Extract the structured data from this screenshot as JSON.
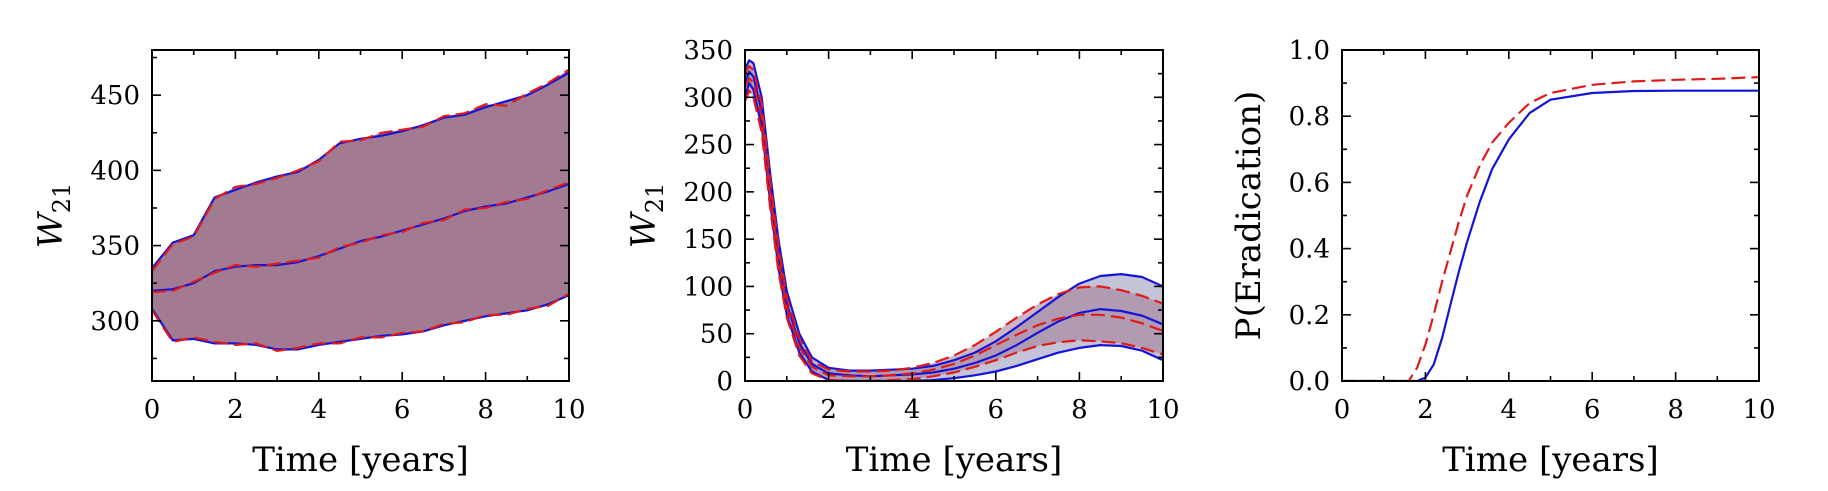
{
  "figure": {
    "colors": {
      "blue": "#1414d8",
      "red": "#e01a1a",
      "fill_purple": "#a27a91",
      "fill_lavender": "#b0b0cc"
    }
  },
  "chart_data": [
    {
      "type": "area",
      "xlabel": "Time [years]",
      "ylabel": "W",
      "ylabel_sub": "21",
      "xlim": [
        0,
        10
      ],
      "ylim": [
        260,
        480
      ],
      "xticks": [
        0,
        2,
        4,
        6,
        8,
        10
      ],
      "yticks": [
        300,
        350,
        400,
        450
      ],
      "x": [
        0,
        0.5,
        1,
        1.5,
        2,
        2.5,
        3,
        3.5,
        4,
        4.5,
        5,
        5.5,
        6,
        6.5,
        7,
        7.5,
        8,
        8.5,
        9,
        9.5,
        10
      ],
      "series": [
        {
          "style": "solid-blue",
          "band": "upper",
          "values": [
            335,
            352,
            357,
            382,
            387,
            392,
            396,
            399,
            407,
            418,
            421,
            423,
            426,
            430,
            435,
            437,
            442,
            446,
            450,
            457,
            465
          ]
        },
        {
          "style": "solid-blue",
          "band": "median",
          "values": [
            320,
            321,
            325,
            333,
            336,
            337,
            337,
            339,
            343,
            348,
            353,
            356,
            360,
            364,
            368,
            373,
            376,
            378,
            382,
            386,
            391
          ]
        },
        {
          "style": "solid-blue",
          "band": "lower",
          "values": [
            308,
            287,
            288,
            285,
            285,
            284,
            281,
            281,
            284,
            286,
            288,
            290,
            291,
            293,
            297,
            300,
            303,
            305,
            307,
            311,
            317
          ]
        },
        {
          "style": "dashed-red",
          "band": "upper",
          "values": [
            333,
            351,
            356,
            381,
            389,
            391,
            395,
            400,
            406,
            419,
            420,
            425,
            427,
            429,
            436,
            438,
            444,
            443,
            451,
            458,
            467
          ]
        },
        {
          "style": "dashed-red",
          "band": "median",
          "values": [
            319,
            320,
            326,
            332,
            337,
            336,
            338,
            340,
            342,
            349,
            352,
            357,
            359,
            365,
            367,
            374,
            375,
            379,
            381,
            387,
            392
          ]
        },
        {
          "style": "dashed-red",
          "band": "lower",
          "values": [
            307,
            286,
            289,
            286,
            284,
            285,
            280,
            282,
            285,
            285,
            289,
            289,
            292,
            293,
            298,
            299,
            304,
            304,
            308,
            310,
            318
          ]
        }
      ]
    },
    {
      "type": "area",
      "xlabel": "Time [years]",
      "ylabel": "W",
      "ylabel_sub": "21",
      "xlim": [
        0,
        10
      ],
      "ylim": [
        0,
        350
      ],
      "xticks": [
        0,
        2,
        4,
        6,
        8,
        10
      ],
      "yticks": [
        0,
        50,
        100,
        150,
        200,
        250,
        300,
        350
      ],
      "x": [
        0,
        0.1,
        0.2,
        0.4,
        0.6,
        0.8,
        1,
        1.3,
        1.6,
        2,
        2.5,
        3,
        3.5,
        4,
        4.5,
        5,
        5.5,
        6,
        6.5,
        7,
        7.5,
        8,
        8.5,
        9,
        9.5,
        10
      ],
      "series": [
        {
          "style": "solid-blue",
          "band": "upper",
          "values": [
            330,
            339,
            336,
            300,
            220,
            150,
            95,
            50,
            25,
            14,
            11,
            11,
            12,
            13,
            16,
            22,
            30,
            42,
            57,
            73,
            89,
            103,
            111,
            113,
            110,
            100
          ]
        },
        {
          "style": "solid-blue",
          "band": "median",
          "values": [
            315,
            327,
            322,
            285,
            205,
            135,
            82,
            40,
            18,
            8,
            6,
            5,
            6,
            7,
            9,
            13,
            19,
            27,
            38,
            51,
            63,
            72,
            76,
            74,
            69,
            60
          ]
        },
        {
          "style": "solid-blue",
          "band": "lower",
          "values": [
            300,
            315,
            308,
            270,
            190,
            120,
            70,
            30,
            10,
            1,
            0,
            0,
            0,
            0,
            1,
            3,
            6,
            10,
            16,
            23,
            30,
            35,
            38,
            37,
            32,
            22
          ]
        },
        {
          "style": "dashed-red",
          "band": "upper",
          "values": [
            325,
            333,
            329,
            293,
            212,
            142,
            88,
            45,
            21,
            12,
            10,
            10,
            11,
            14,
            19,
            27,
            38,
            52,
            67,
            81,
            92,
            99,
            100,
            96,
            90,
            82
          ]
        },
        {
          "style": "dashed-red",
          "band": "median",
          "values": [
            311,
            320,
            315,
            279,
            198,
            130,
            78,
            36,
            15,
            6,
            5,
            5,
            6,
            8,
            12,
            18,
            27,
            38,
            49,
            59,
            66,
            70,
            70,
            67,
            61,
            53
          ]
        },
        {
          "style": "dashed-red",
          "band": "lower",
          "values": [
            296,
            307,
            300,
            263,
            184,
            116,
            67,
            27,
            8,
            1,
            0,
            0,
            1,
            2,
            5,
            9,
            15,
            22,
            30,
            37,
            41,
            43,
            42,
            40,
            35,
            28
          ]
        }
      ]
    },
    {
      "type": "line",
      "xlabel": "Time [years]",
      "ylabel": "P(Eradication)",
      "xlim": [
        0,
        10
      ],
      "ylim": [
        0,
        1
      ],
      "xticks": [
        0,
        2,
        4,
        6,
        8,
        10
      ],
      "yticks": [
        0.0,
        0.2,
        0.4,
        0.6,
        0.8,
        1.0
      ],
      "ytick_labels": [
        "0.0",
        "0.2",
        "0.4",
        "0.6",
        "0.8",
        "1.0"
      ],
      "x": [
        0,
        1,
        1.6,
        1.8,
        2.0,
        2.2,
        2.4,
        2.6,
        2.8,
        3.0,
        3.3,
        3.6,
        4.0,
        4.5,
        5,
        6,
        7,
        8,
        9,
        10
      ],
      "series": [
        {
          "style": "solid-blue",
          "values": [
            0,
            0,
            0,
            0,
            0.01,
            0.05,
            0.13,
            0.23,
            0.33,
            0.42,
            0.54,
            0.64,
            0.73,
            0.81,
            0.85,
            0.87,
            0.876,
            0.877,
            0.877,
            0.877
          ]
        },
        {
          "style": "dashed-red",
          "values": [
            0,
            0,
            0.0,
            0.04,
            0.11,
            0.2,
            0.3,
            0.39,
            0.48,
            0.56,
            0.65,
            0.72,
            0.78,
            0.84,
            0.87,
            0.895,
            0.905,
            0.91,
            0.913,
            0.918
          ]
        }
      ]
    }
  ]
}
